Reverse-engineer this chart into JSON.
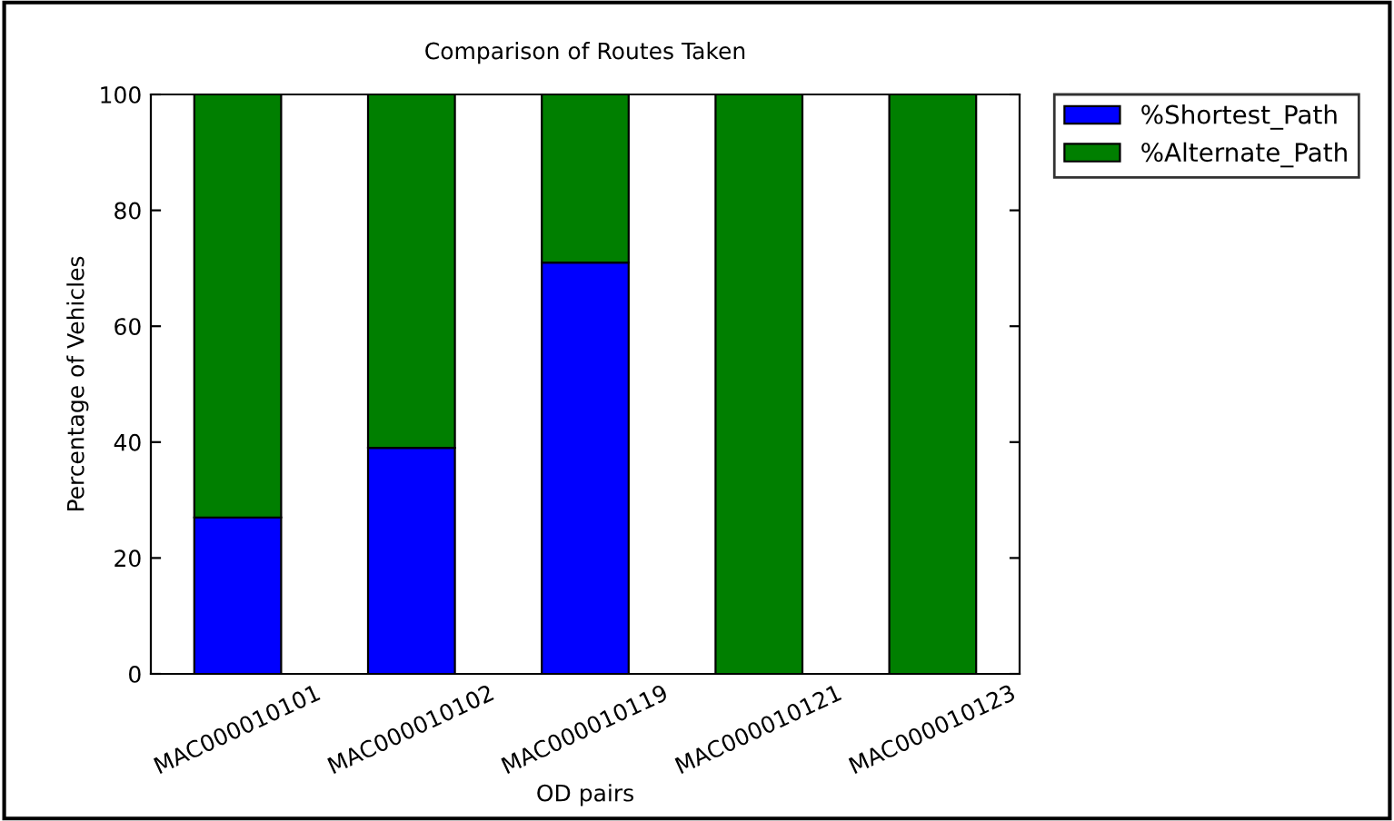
{
  "chart_data": {
    "type": "bar",
    "title": "Comparison of Routes Taken",
    "xlabel": "OD pairs",
    "ylabel": "Percentage of Vehicles",
    "categories": [
      "MAC000010101",
      "MAC000010102",
      "MAC000010119",
      "MAC000010121",
      "MAC000010123"
    ],
    "series": [
      {
        "name": "%Shortest_Path",
        "color": "#0000ff",
        "values": [
          27,
          39,
          71,
          0,
          0
        ]
      },
      {
        "name": "%Alternate_Path",
        "color": "#007f00",
        "values": [
          73,
          61,
          29,
          100,
          100
        ]
      }
    ],
    "stacked": true,
    "ylim": [
      0,
      100
    ],
    "yticks": [
      0,
      20,
      40,
      60,
      80,
      100
    ],
    "grid": false,
    "legend": "top right"
  }
}
